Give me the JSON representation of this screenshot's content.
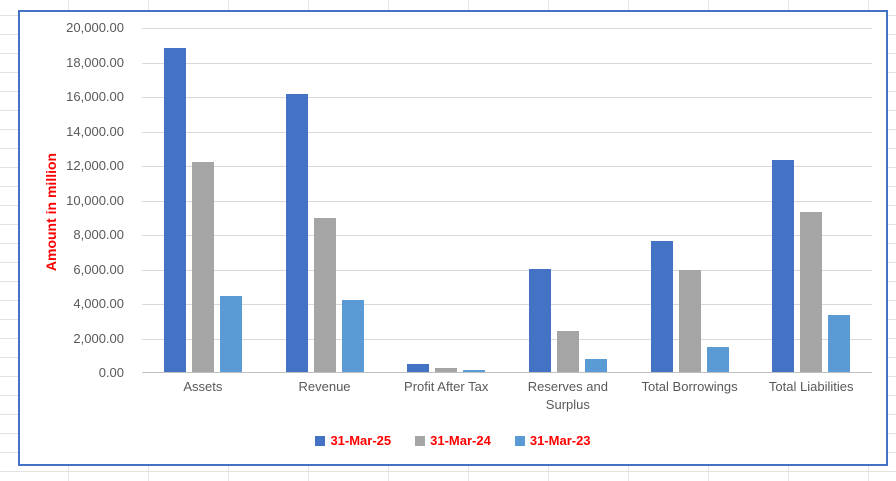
{
  "chart_style": {
    "chart_border_color": "#4472C4",
    "axis_title_color": "#FF0000",
    "legend_text_color": "#FF0000",
    "tick_label_color": "#595959",
    "gridline_color": "#D9D9D9",
    "axis_line_color": "#BFBFBF"
  },
  "chart_data": {
    "type": "bar",
    "title": "",
    "xlabel": "",
    "ylabel": "Amount in million",
    "ylim": [
      0,
      20000
    ],
    "ytick_step": 2000,
    "ytick_labels": [
      "0.00",
      "2,000.00",
      "4,000.00",
      "6,000.00",
      "8,000.00",
      "10,000.00",
      "12,000.00",
      "14,000.00",
      "16,000.00",
      "18,000.00",
      "20,000.00"
    ],
    "grid": true,
    "legend_position": "bottom",
    "categories": [
      "Assets",
      "Revenue",
      "Profit After Tax",
      "Reserves and Surplus",
      "Total Borrowings",
      "Total Liabilities"
    ],
    "series": [
      {
        "name": "31-Mar-25",
        "color": "#4472C4",
        "values": [
          18800,
          16100,
          450,
          5950,
          7600,
          12300
        ]
      },
      {
        "name": "31-Mar-24",
        "color": "#A5A5A5",
        "values": [
          12150,
          8950,
          250,
          2400,
          5900,
          9300
        ]
      },
      {
        "name": "31-Mar-23",
        "color": "#5B9BD5",
        "values": [
          4380,
          4200,
          120,
          750,
          1450,
          3300
        ]
      }
    ]
  }
}
